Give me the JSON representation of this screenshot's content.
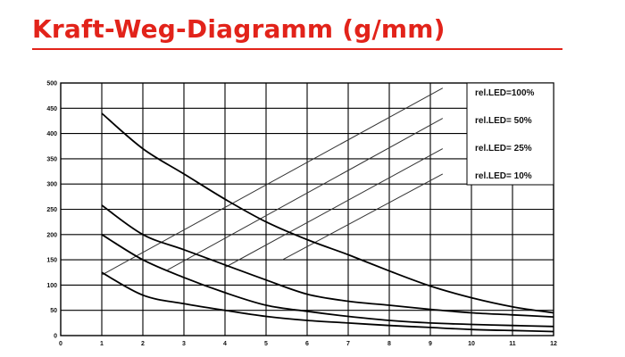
{
  "header": {
    "title": "Kraft-Weg-Diagramm (g/mm)",
    "accent_color": "#e2231a"
  },
  "chart_data": {
    "type": "line",
    "title": "Kraft-Weg-Diagramm (g/mm)",
    "xlabel": "",
    "ylabel": "",
    "xlim": [
      0,
      12
    ],
    "ylim": [
      0,
      500
    ],
    "x_ticks": [
      0,
      1,
      2,
      3,
      4,
      5,
      6,
      7,
      8,
      9,
      10,
      11,
      12
    ],
    "y_ticks": [
      0,
      50,
      100,
      150,
      200,
      250,
      300,
      350,
      400,
      450,
      500
    ],
    "grid": true,
    "legend_position": "top-right",
    "curves": [
      {
        "x": [
          1,
          2,
          3,
          4,
          5,
          6,
          7,
          8,
          9,
          10,
          11,
          12
        ],
        "y": [
          440,
          370,
          320,
          270,
          225,
          190,
          160,
          128,
          98,
          75,
          57,
          45
        ]
      },
      {
        "x": [
          1,
          2,
          3,
          4,
          5,
          6,
          7,
          8,
          9,
          10,
          11,
          12
        ],
        "y": [
          258,
          200,
          170,
          140,
          110,
          82,
          68,
          60,
          52,
          45,
          41,
          37
        ]
      },
      {
        "x": [
          1,
          2,
          3,
          4,
          5,
          6,
          7,
          8,
          9,
          10,
          11,
          12
        ],
        "y": [
          200,
          150,
          115,
          85,
          60,
          48,
          38,
          30,
          25,
          22,
          20,
          18
        ]
      },
      {
        "x": [
          1,
          2,
          3,
          4,
          5,
          6,
          7,
          8,
          9,
          10,
          11,
          12
        ],
        "y": [
          125,
          80,
          63,
          50,
          38,
          30,
          25,
          20,
          16,
          12,
          10,
          8
        ]
      }
    ],
    "rel_led_lines": [
      {
        "name": "rel.LED=100%",
        "x": [
          1,
          9.3
        ],
        "y": [
          120,
          490
        ]
      },
      {
        "name": "rel.LED= 50%",
        "x": [
          2.6,
          9.3
        ],
        "y": [
          130,
          430
        ]
      },
      {
        "name": "rel.LED= 25%",
        "x": [
          4.0,
          9.3
        ],
        "y": [
          135,
          370
        ]
      },
      {
        "name": "rel.LED= 10%",
        "x": [
          5.4,
          9.3
        ],
        "y": [
          150,
          320
        ]
      }
    ]
  }
}
